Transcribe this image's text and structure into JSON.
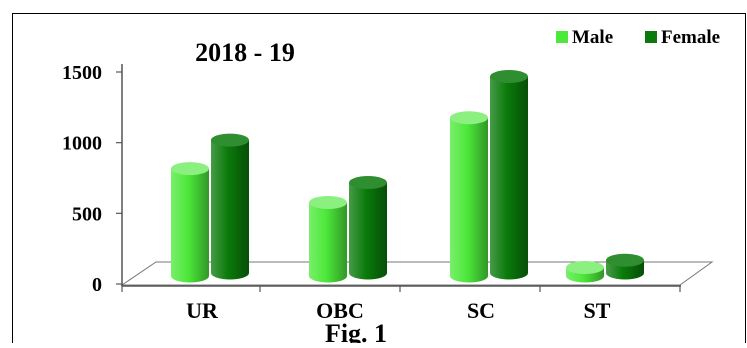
{
  "chart_data": {
    "type": "bar",
    "title": "2018 - 19",
    "caption": "Fig. 1",
    "categories": [
      "UR",
      "OBC",
      "SC",
      "ST"
    ],
    "series": [
      {
        "name": "Male",
        "values": [
          760,
          520,
          1120,
          60
        ],
        "color": "#4CE83A"
      },
      {
        "name": "Female",
        "values": [
          940,
          640,
          1390,
          90
        ],
        "color": "#0A7A0A"
      }
    ],
    "yticks": [
      "0",
      "500",
      "1000",
      "1500"
    ],
    "ylim": [
      0,
      1500
    ],
    "legend": "top-right",
    "grid": false,
    "xlabel": "",
    "ylabel": ""
  }
}
